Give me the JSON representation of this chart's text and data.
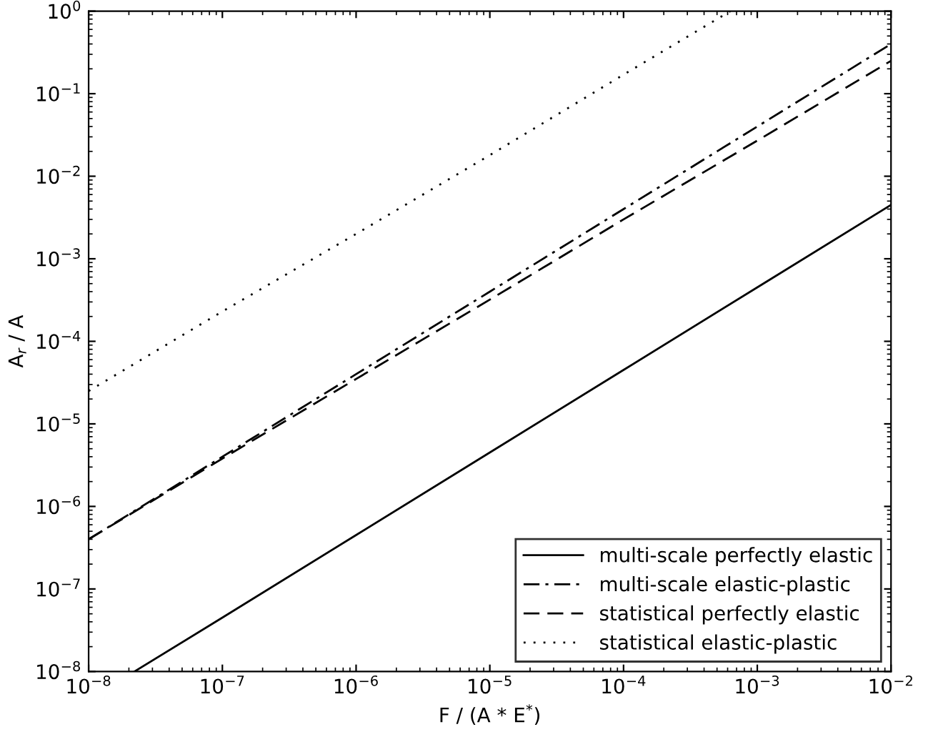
{
  "chart_data": {
    "type": "line",
    "xlabel": "F / (A * E$^{*}$)",
    "ylabel": "A$_{r}$ / A",
    "log": "xy",
    "grid": false,
    "legend": "bottom right",
    "marker": "none",
    "xlim": [
      1e-08,
      0.01
    ],
    "ylim": [
      1e-08,
      1
    ],
    "xticks": [
      {
        "value": 1e-08,
        "label": "10$^{−8}$"
      },
      {
        "value": 1e-07,
        "label": "10$^{−7}$"
      },
      {
        "value": 1e-06,
        "label": "10$^{−6}$"
      },
      {
        "value": 1e-05,
        "label": "10$^{−5}$"
      },
      {
        "value": 0.0001,
        "label": "10$^{−4}$"
      },
      {
        "value": 0.001,
        "label": "10$^{−3}$"
      },
      {
        "value": 0.01,
        "label": "10$^{−2}$"
      }
    ],
    "yticks": [
      {
        "value": 1e-08,
        "label": "10$^{−8}$"
      },
      {
        "value": 1e-07,
        "label": "10$^{−7}$"
      },
      {
        "value": 1e-06,
        "label": "10$^{−6}$"
      },
      {
        "value": 1e-05,
        "label": "10$^{−5}$"
      },
      {
        "value": 0.0001,
        "label": "10$^{−4}$"
      },
      {
        "value": 0.001,
        "label": "10$^{−3}$"
      },
      {
        "value": 0.01,
        "label": "10$^{−2}$"
      },
      {
        "value": 0.1,
        "label": "10$^{−1}$"
      },
      {
        "value": 1,
        "label": "10$^{0}$"
      }
    ],
    "series": [
      {
        "name": "multi-scale perfectly elastic",
        "color": "#000000",
        "line_style": "solid",
        "x": [
          2.2e-08,
          1e-07,
          1e-06,
          1e-05,
          0.0001,
          0.001,
          0.01
        ],
        "values": [
          1e-08,
          4.5e-08,
          4.5e-07,
          4.5e-06,
          4.5e-05,
          0.00045,
          0.0045
        ]
      },
      {
        "name": "multi-scale elastic-plastic",
        "color": "#000000",
        "line_style": "dashdot",
        "x": [
          1e-08,
          1e-07,
          1e-06,
          1e-05,
          0.0001,
          0.001,
          0.01
        ],
        "values": [
          4e-07,
          4e-06,
          4e-05,
          0.0004,
          0.004,
          0.04,
          0.4
        ]
      },
      {
        "name": "statistical perfectly elastic",
        "color": "#000000",
        "line_style": "dashed",
        "x": [
          1e-08,
          1e-07,
          1e-06,
          1e-05,
          0.0001,
          0.001,
          0.01
        ],
        "values": [
          4e-07,
          3.8e-06,
          3.5e-05,
          0.00032,
          0.003,
          0.027,
          0.25
        ]
      },
      {
        "name": "statistical elastic-plastic",
        "color": "#000000",
        "line_style": "dotted",
        "x": [
          1e-08,
          1e-07,
          1e-06,
          1e-05,
          0.0001,
          0.00063
        ],
        "values": [
          2.5e-05,
          0.00023,
          0.002,
          0.018,
          0.17,
          1
        ]
      }
    ]
  }
}
